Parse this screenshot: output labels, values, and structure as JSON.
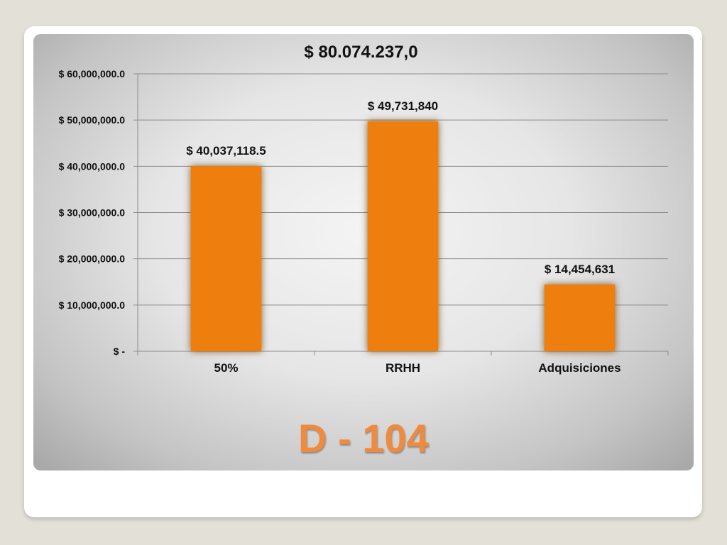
{
  "slide": {
    "title": "D - 104"
  },
  "chart_data": {
    "type": "bar",
    "title": "$ 80.074.237,0",
    "categories": [
      "50%",
      "RRHH",
      "Adquisiciones"
    ],
    "values": [
      40037118.5,
      49731840,
      14454631
    ],
    "data_labels": [
      "$ 40,037,118.5",
      "$ 49,731,840",
      "$ 14,454,631"
    ],
    "ylim": [
      0,
      60000000
    ],
    "yticks": [
      0,
      10000000,
      20000000,
      30000000,
      40000000,
      50000000,
      60000000
    ],
    "ytick_labels": [
      "$ -",
      "$ 10,000,000.0",
      "$ 20,000,000.0",
      "$ 30,000,000.0",
      "$ 40,000,000.0",
      "$ 50,000,000.0",
      "$ 60,000,000.0"
    ],
    "xlabel": "",
    "ylabel": "",
    "grid": true,
    "bar_color": "#ee7e10"
  }
}
